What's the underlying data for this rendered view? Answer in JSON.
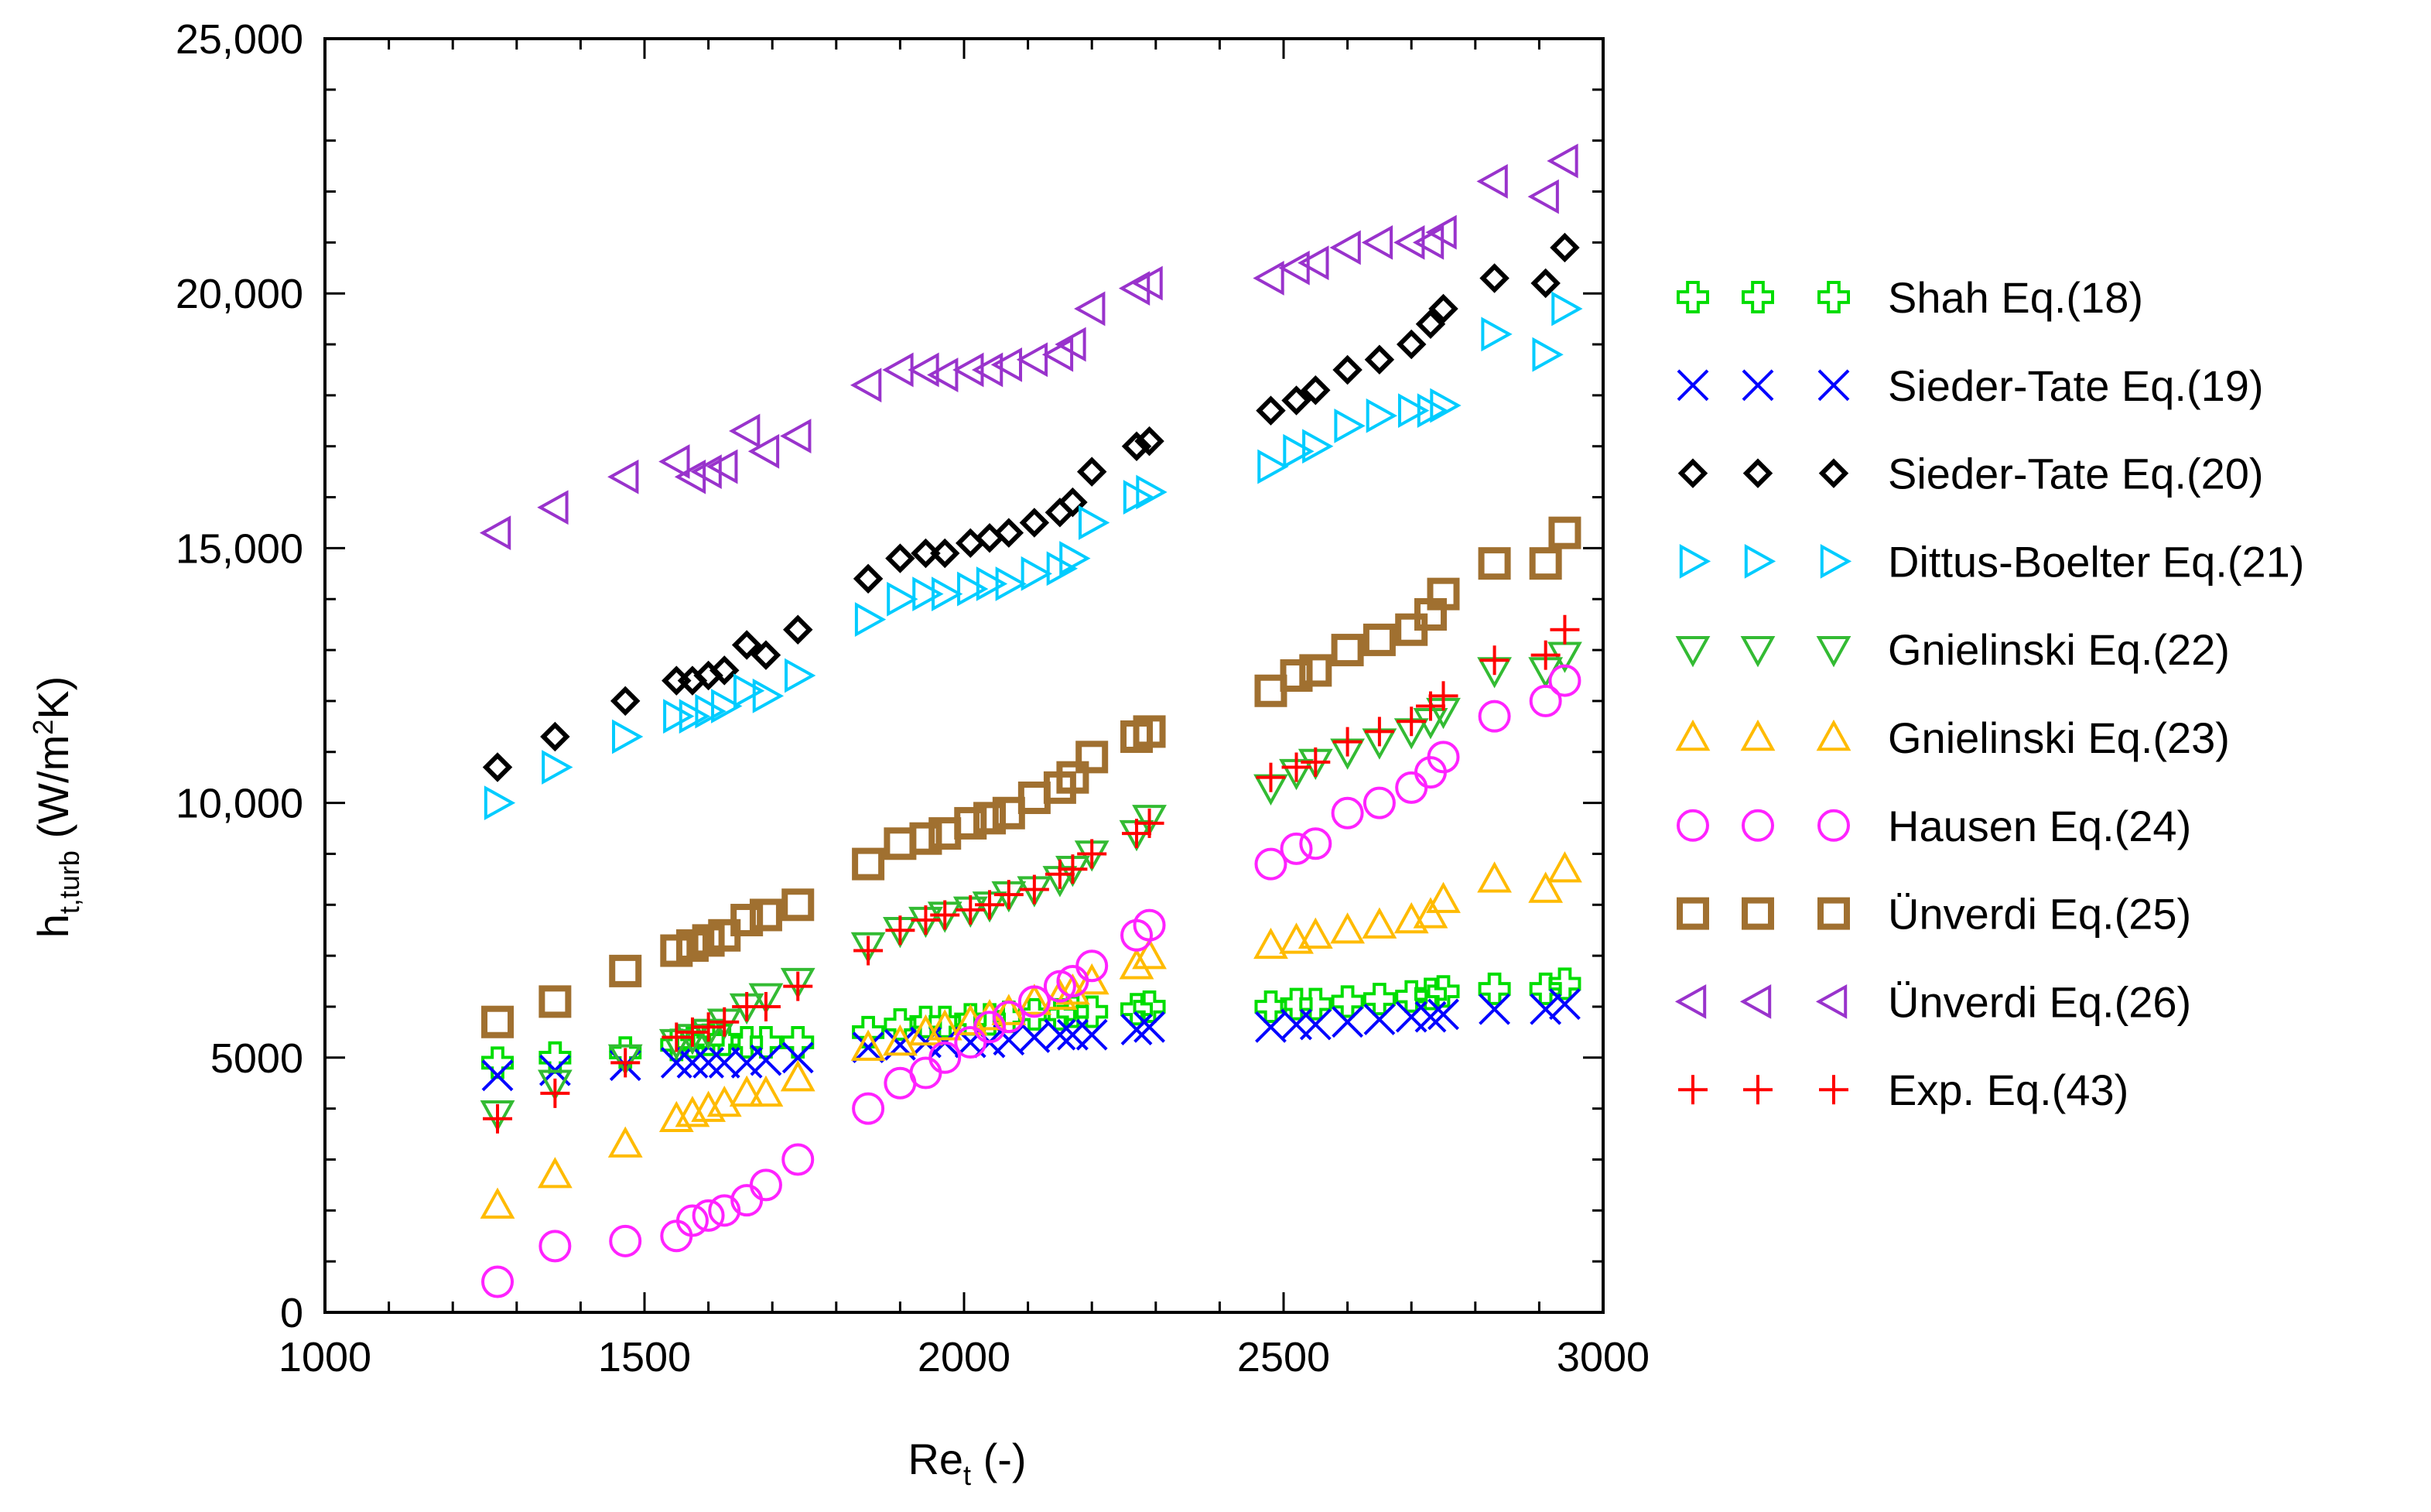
{
  "chart_data": {
    "type": "scatter",
    "title": "",
    "xlabel": {
      "main": "Re",
      "sub": "t",
      "suffix": " (-)"
    },
    "ylabel": {
      "main": "h",
      "sub": "t,turb",
      "prefix": " (W/m",
      "sup": "2",
      "suffix": "K)"
    },
    "xlim": [
      1000,
      3000
    ],
    "ylim": [
      0,
      25000
    ],
    "xticks": [
      1000,
      1500,
      2000,
      2500,
      3000
    ],
    "xtick_labels": [
      "1000",
      "1500",
      "2000",
      "2500",
      "3000"
    ],
    "yticks": [
      0,
      5000,
      10000,
      15000,
      20000,
      25000
    ],
    "ytick_labels": [
      "0",
      "5000",
      "10,000",
      "15,000",
      "20,000",
      "25,000"
    ],
    "grid": false,
    "legend_position": "right",
    "x": [
      1270,
      1360,
      1470,
      1550,
      1575,
      1600,
      1625,
      1660,
      1690,
      1740,
      1850,
      1900,
      1940,
      1970,
      2010,
      2040,
      2070,
      2110,
      2150,
      2170,
      2200,
      2270,
      2290,
      2480,
      2520,
      2550,
      2600,
      2650,
      2700,
      2730,
      2750,
      2830,
      2910,
      2940
    ],
    "series": [
      {
        "name": "Shah Eq.(18)",
        "marker": "open-cross",
        "color": "#00dd00",
        "values": [
          4900,
          5000,
          5100,
          5250,
          5300,
          5350,
          5350,
          5300,
          5300,
          5300,
          5500,
          5650,
          5700,
          5700,
          5750,
          5750,
          5800,
          5850,
          5850,
          5900,
          5900,
          5950,
          6000,
          6000,
          6050,
          6050,
          6100,
          6150,
          6200,
          6250,
          6300,
          6350,
          6350,
          6450
        ]
      },
      {
        "name": "Sieder-Tate Eq.(19)",
        "marker": "x",
        "color": "#0000ff",
        "values": [
          4650,
          4750,
          4850,
          4900,
          4900,
          4900,
          4900,
          4900,
          4950,
          5000,
          5200,
          5250,
          5300,
          5300,
          5300,
          5300,
          5350,
          5400,
          5450,
          5450,
          5450,
          5550,
          5600,
          5600,
          5650,
          5650,
          5700,
          5750,
          5800,
          5800,
          5850,
          5950,
          5950,
          6050
        ]
      },
      {
        "name": "Sieder-Tate Eq.(20)",
        "marker": "diamond",
        "color": "#000000",
        "values": [
          10700,
          11300,
          12000,
          12400,
          12400,
          12500,
          12600,
          13100,
          12900,
          13400,
          14400,
          14800,
          14900,
          14900,
          15100,
          15200,
          15300,
          15500,
          15700,
          15900,
          16500,
          17000,
          17100,
          17700,
          17900,
          18100,
          18500,
          18700,
          19000,
          19400,
          19700,
          20300,
          20200,
          20900
        ]
      },
      {
        "name": "Dittus-Boelter Eq.(21)",
        "marker": "triangle-right",
        "color": "#00ccff",
        "values": [
          10000,
          10700,
          11300,
          11700,
          11700,
          11800,
          11900,
          12200,
          12100,
          12500,
          13600,
          14000,
          14100,
          14100,
          14200,
          14300,
          14300,
          14500,
          14600,
          14800,
          15500,
          16000,
          16100,
          16600,
          16900,
          17000,
          17400,
          17600,
          17700,
          17700,
          17800,
          19200,
          18800,
          19700
        ]
      },
      {
        "name": "Gnielinski Eq.(22)",
        "marker": "triangle-down",
        "color": "#33bb33",
        "values": [
          3900,
          4500,
          5000,
          5300,
          5400,
          5500,
          5700,
          6000,
          6200,
          6500,
          7200,
          7500,
          7700,
          7800,
          7900,
          8000,
          8200,
          8300,
          8500,
          8700,
          9000,
          9400,
          9700,
          10300,
          10600,
          10800,
          11000,
          11200,
          11400,
          11600,
          11800,
          12600,
          12600,
          12900
        ]
      },
      {
        "name": "Gnielinski Eq.(23)",
        "marker": "triangle-up",
        "color": "#ffbb00",
        "values": [
          2100,
          2700,
          3300,
          3800,
          3900,
          4000,
          4100,
          4300,
          4300,
          4600,
          5200,
          5300,
          5500,
          5600,
          5700,
          5800,
          5900,
          6100,
          6200,
          6300,
          6500,
          6800,
          7000,
          7200,
          7300,
          7400,
          7500,
          7600,
          7700,
          7800,
          8100,
          8500,
          8300,
          8700
        ]
      },
      {
        "name": "Hausen Eq.(24)",
        "marker": "circle",
        "color": "#ff22ff",
        "values": [
          600,
          1300,
          1400,
          1500,
          1800,
          1900,
          2000,
          2200,
          2500,
          3000,
          4000,
          4500,
          4700,
          5000,
          5300,
          5600,
          5800,
          6100,
          6400,
          6500,
          6800,
          7400,
          7600,
          8800,
          9100,
          9200,
          9800,
          10000,
          10300,
          10600,
          10900,
          11700,
          12000,
          12400
        ]
      },
      {
        "name": "Ünverdi Eq.(25)",
        "marker": "square",
        "color": "#a07030",
        "values": [
          5700,
          6100,
          6700,
          7100,
          7200,
          7300,
          7400,
          7700,
          7800,
          8000,
          8800,
          9200,
          9300,
          9400,
          9600,
          9700,
          9800,
          10100,
          10300,
          10500,
          10900,
          11300,
          11400,
          12200,
          12500,
          12600,
          13000,
          13200,
          13400,
          13700,
          14100,
          14700,
          14700,
          15300
        ]
      },
      {
        "name": "Ünverdi Eq.(26)",
        "marker": "triangle-left",
        "color": "#9933cc",
        "values": [
          15300,
          15800,
          16400,
          16700,
          16400,
          16500,
          16600,
          17300,
          16900,
          17200,
          18200,
          18500,
          18500,
          18400,
          18500,
          18500,
          18600,
          18700,
          18800,
          19000,
          19700,
          20100,
          20200,
          20300,
          20500,
          20600,
          20900,
          21000,
          21000,
          21000,
          21200,
          22200,
          21900,
          22600
        ]
      },
      {
        "name": "Exp. Eq.(43)",
        "marker": "plus",
        "color": "#ff0000",
        "values": [
          3800,
          4300,
          4900,
          5400,
          5500,
          5600,
          5700,
          6000,
          6000,
          6400,
          7100,
          7500,
          7700,
          7800,
          7900,
          8000,
          8200,
          8300,
          8600,
          8700,
          9000,
          9400,
          9600,
          10500,
          10700,
          10800,
          11200,
          11400,
          11600,
          11900,
          12100,
          12800,
          12900,
          13400
        ]
      }
    ]
  }
}
